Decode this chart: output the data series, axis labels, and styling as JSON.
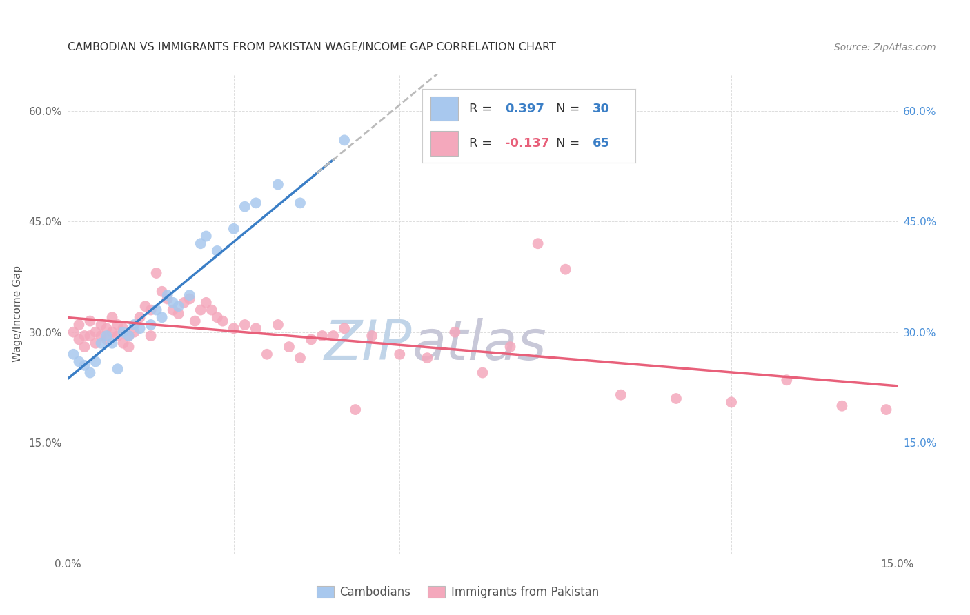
{
  "title": "CAMBODIAN VS IMMIGRANTS FROM PAKISTAN WAGE/INCOME GAP CORRELATION CHART",
  "source": "Source: ZipAtlas.com",
  "ylabel": "Wage/Income Gap",
  "xlim": [
    0.0,
    0.15
  ],
  "ylim": [
    0.0,
    0.65
  ],
  "yticks": [
    0.0,
    0.15,
    0.3,
    0.45,
    0.6
  ],
  "ytick_labels": [
    "",
    "15.0%",
    "30.0%",
    "45.0%",
    "60.0%"
  ],
  "xticks": [
    0.0,
    0.03,
    0.06,
    0.09,
    0.12,
    0.15
  ],
  "xtick_labels": [
    "0.0%",
    "",
    "",
    "",
    "",
    "15.0%"
  ],
  "right_ytick_labels": [
    "",
    "15.0%",
    "30.0%",
    "45.0%",
    "60.0%"
  ],
  "legend_label1": "Cambodians",
  "legend_label2": "Immigrants from Pakistan",
  "blue_color": "#A8C8EE",
  "pink_color": "#F4A8BC",
  "blue_line_color": "#3A7EC6",
  "pink_line_color": "#E8607A",
  "dashed_line_color": "#BBBBBB",
  "grid_color": "#DDDDDD",
  "title_color": "#333333",
  "source_color": "#888888",
  "axis_label_color": "#555555",
  "tick_color": "#666666",
  "right_tick_color": "#4A90D9",
  "watermark_zip_color": "#C0D4E8",
  "watermark_atlas_color": "#C8C8D8",
  "cambodian_x": [
    0.001,
    0.002,
    0.003,
    0.004,
    0.005,
    0.006,
    0.007,
    0.008,
    0.009,
    0.01,
    0.011,
    0.012,
    0.013,
    0.015,
    0.016,
    0.017,
    0.018,
    0.019,
    0.02,
    0.022,
    0.024,
    0.025,
    0.027,
    0.03,
    0.032,
    0.034,
    0.038,
    0.042,
    0.05,
    0.065
  ],
  "cambodian_y": [
    0.27,
    0.26,
    0.255,
    0.245,
    0.26,
    0.285,
    0.295,
    0.285,
    0.25,
    0.3,
    0.295,
    0.31,
    0.305,
    0.31,
    0.33,
    0.32,
    0.35,
    0.34,
    0.335,
    0.35,
    0.42,
    0.43,
    0.41,
    0.44,
    0.47,
    0.475,
    0.5,
    0.475,
    0.56,
    0.595
  ],
  "pakistan_x": [
    0.001,
    0.002,
    0.002,
    0.003,
    0.003,
    0.004,
    0.004,
    0.005,
    0.005,
    0.006,
    0.006,
    0.007,
    0.007,
    0.008,
    0.008,
    0.009,
    0.009,
    0.01,
    0.01,
    0.011,
    0.011,
    0.012,
    0.013,
    0.014,
    0.015,
    0.015,
    0.016,
    0.017,
    0.018,
    0.019,
    0.02,
    0.021,
    0.022,
    0.023,
    0.024,
    0.025,
    0.026,
    0.027,
    0.028,
    0.03,
    0.032,
    0.034,
    0.036,
    0.038,
    0.04,
    0.042,
    0.044,
    0.046,
    0.048,
    0.05,
    0.055,
    0.06,
    0.065,
    0.07,
    0.075,
    0.08,
    0.085,
    0.09,
    0.1,
    0.11,
    0.12,
    0.13,
    0.14,
    0.148,
    0.052
  ],
  "pakistan_y": [
    0.3,
    0.31,
    0.29,
    0.295,
    0.28,
    0.315,
    0.295,
    0.3,
    0.285,
    0.31,
    0.295,
    0.305,
    0.29,
    0.32,
    0.3,
    0.31,
    0.295,
    0.305,
    0.285,
    0.295,
    0.28,
    0.3,
    0.32,
    0.335,
    0.33,
    0.295,
    0.38,
    0.355,
    0.345,
    0.33,
    0.325,
    0.34,
    0.345,
    0.315,
    0.33,
    0.34,
    0.33,
    0.32,
    0.315,
    0.305,
    0.31,
    0.305,
    0.27,
    0.31,
    0.28,
    0.265,
    0.29,
    0.295,
    0.295,
    0.305,
    0.295,
    0.27,
    0.265,
    0.3,
    0.245,
    0.28,
    0.42,
    0.385,
    0.215,
    0.21,
    0.205,
    0.235,
    0.2,
    0.195,
    0.195
  ]
}
